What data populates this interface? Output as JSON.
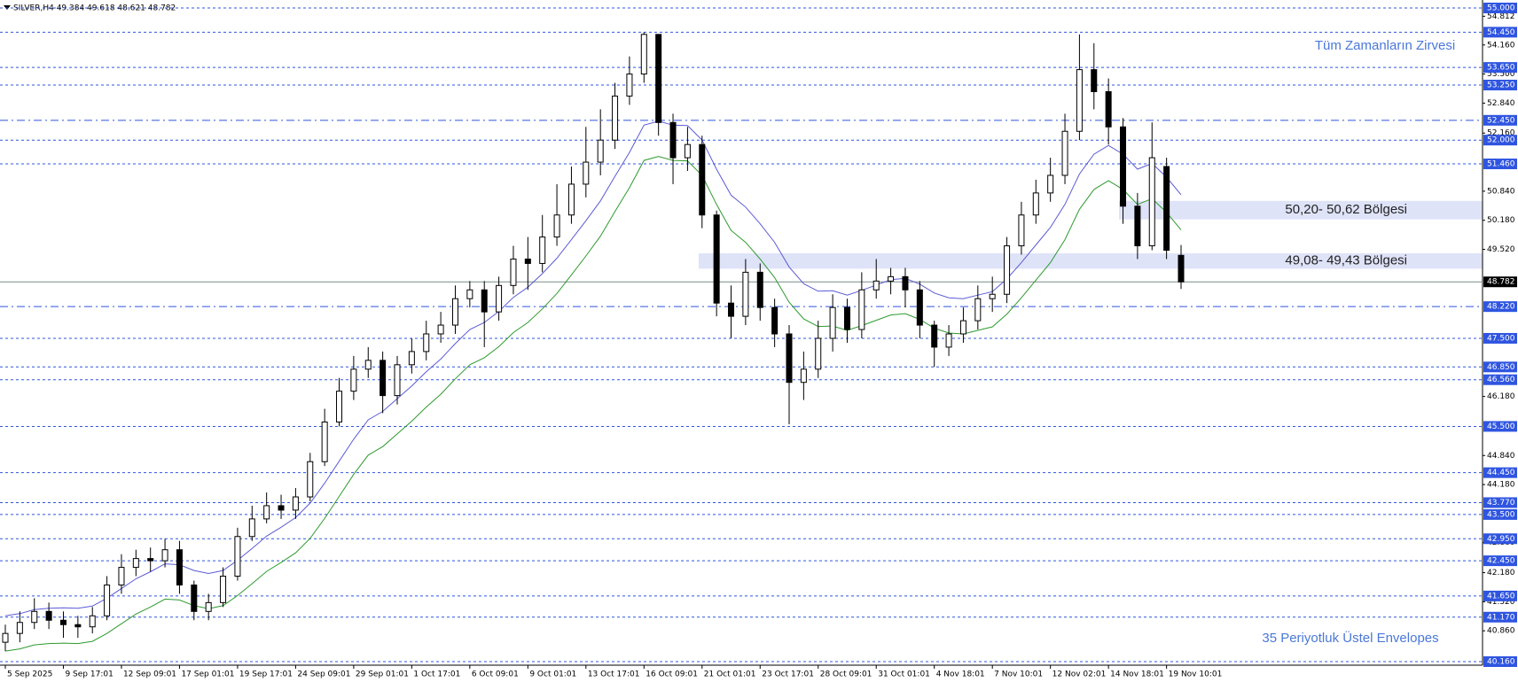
{
  "chart_data": {
    "type": "candlestick",
    "header": "SILVER,H4  49.384 49.618 48.621 48.782",
    "categories": [
      "5 Sep 2025",
      null,
      null,
      null,
      "9 Sep 17:01",
      null,
      null,
      null,
      "12 Sep 09:01",
      null,
      null,
      null,
      "17 Sep 01:01",
      null,
      null,
      null,
      "19 Sep 17:01",
      null,
      null,
      null,
      "24 Sep 09:01",
      null,
      null,
      null,
      "29 Sep 01:01",
      null,
      null,
      null,
      "1 Oct 17:01",
      null,
      null,
      null,
      "6 Oct 09:01",
      null,
      null,
      null,
      "9 Oct 01:01",
      null,
      null,
      null,
      "13 Oct 17:01",
      null,
      null,
      null,
      "16 Oct 09:01",
      null,
      null,
      null,
      "21 Oct 01:01",
      null,
      null,
      null,
      "23 Oct 17:01",
      null,
      null,
      null,
      "28 Oct 09:01",
      null,
      null,
      null,
      "31 Oct 01:01",
      null,
      null,
      null,
      "4 Nov 18:01",
      null,
      null,
      null,
      "7 Nov 10:01",
      null,
      null,
      null,
      "12 Nov 02:01",
      null,
      null,
      null,
      "14 Nov 18:01",
      null,
      null,
      null,
      "19 Nov 10:01",
      null
    ],
    "open": [
      40.6,
      40.8,
      41.05,
      41.3,
      41.1,
      41.0,
      40.95,
      41.2,
      41.9,
      42.3,
      42.5,
      42.45,
      42.7,
      41.9,
      41.3,
      41.5,
      42.1,
      43.0,
      43.4,
      43.7,
      43.6,
      43.9,
      44.7,
      45.6,
      46.3,
      46.8,
      47.0,
      46.2,
      46.9,
      47.2,
      47.6,
      47.8,
      48.4,
      48.6,
      48.1,
      48.7,
      49.3,
      49.2,
      49.8,
      50.3,
      51.0,
      51.5,
      52.0,
      53.0,
      53.5,
      54.4,
      52.4,
      51.6,
      51.9,
      50.3,
      48.3,
      48.0,
      49.0,
      48.2,
      47.6,
      46.5,
      46.8,
      47.5,
      48.2,
      47.7,
      48.6,
      48.8,
      48.9,
      48.6,
      47.8,
      47.3,
      47.6,
      47.9,
      48.4,
      48.5,
      49.6,
      50.3,
      50.8,
      51.2,
      52.2,
      53.6,
      53.1,
      52.3,
      50.5,
      49.6,
      51.4,
      49.384
    ],
    "high": [
      41.0,
      41.3,
      41.6,
      41.5,
      41.3,
      41.2,
      41.4,
      42.1,
      42.6,
      42.7,
      42.75,
      42.95,
      42.9,
      42.0,
      41.7,
      42.3,
      43.2,
      43.7,
      44.0,
      43.95,
      44.1,
      44.9,
      45.9,
      46.6,
      47.1,
      47.3,
      47.2,
      47.1,
      47.5,
      47.9,
      48.1,
      48.7,
      48.8,
      48.8,
      48.9,
      49.6,
      49.8,
      50.3,
      51.0,
      51.4,
      52.3,
      52.7,
      53.3,
      53.9,
      54.45,
      54.4,
      52.6,
      52.3,
      52.1,
      50.4,
      48.7,
      49.3,
      49.2,
      48.4,
      47.8,
      47.2,
      47.9,
      48.5,
      48.4,
      49.0,
      49.3,
      49.1,
      49.1,
      48.8,
      47.9,
      47.8,
      48.2,
      48.7,
      48.9,
      49.8,
      50.6,
      51.1,
      51.6,
      52.6,
      54.4,
      54.2,
      53.4,
      52.5,
      50.8,
      52.4,
      51.6,
      49.618
    ],
    "low": [
      40.4,
      40.6,
      40.9,
      40.9,
      40.7,
      40.7,
      40.8,
      41.1,
      41.7,
      42.1,
      42.2,
      42.3,
      41.7,
      41.1,
      41.1,
      41.4,
      42.0,
      42.9,
      43.3,
      43.4,
      43.4,
      43.8,
      44.6,
      45.5,
      46.1,
      46.6,
      45.8,
      46.0,
      46.7,
      47.0,
      47.4,
      47.6,
      48.2,
      47.3,
      47.9,
      48.5,
      48.6,
      49.0,
      49.6,
      50.1,
      50.7,
      51.2,
      51.8,
      52.8,
      53.3,
      52.1,
      51.0,
      51.3,
      50.0,
      48.0,
      47.5,
      47.8,
      47.9,
      47.3,
      45.55,
      46.1,
      46.6,
      47.2,
      47.4,
      47.5,
      48.4,
      48.5,
      48.2,
      47.5,
      46.85,
      47.1,
      47.4,
      47.7,
      48.1,
      48.3,
      49.4,
      50.1,
      50.6,
      51.0,
      52.0,
      52.7,
      51.9,
      50.1,
      49.3,
      49.5,
      49.3,
      48.621
    ],
    "close": [
      40.8,
      41.05,
      41.3,
      41.1,
      41.0,
      40.95,
      41.2,
      41.9,
      42.3,
      42.5,
      42.45,
      42.7,
      41.9,
      41.3,
      41.5,
      42.1,
      43.0,
      43.4,
      43.7,
      43.6,
      43.9,
      44.7,
      45.6,
      46.3,
      46.8,
      47.0,
      46.2,
      46.9,
      47.2,
      47.6,
      47.8,
      48.4,
      48.6,
      48.1,
      48.7,
      49.3,
      49.2,
      49.8,
      50.3,
      51.0,
      51.5,
      52.0,
      53.0,
      53.5,
      54.4,
      52.4,
      51.6,
      51.9,
      50.3,
      48.3,
      48.0,
      49.0,
      48.2,
      47.6,
      46.5,
      46.8,
      47.5,
      48.2,
      47.7,
      48.6,
      48.8,
      48.9,
      48.6,
      47.8,
      47.3,
      47.6,
      47.9,
      48.4,
      48.5,
      49.6,
      50.3,
      50.8,
      51.2,
      52.2,
      53.6,
      53.1,
      52.3,
      50.5,
      49.6,
      51.6,
      49.5,
      48.782
    ],
    "candle_colors": {
      "up": "#ffffff",
      "down": "#000000",
      "outline": "#000000"
    },
    "series": [
      {
        "color": "#5b5bd6",
        "values": [
          41.2,
          41.25,
          41.34,
          41.37,
          41.38,
          41.37,
          41.42,
          41.6,
          41.82,
          42.04,
          42.2,
          42.38,
          42.36,
          42.23,
          42.16,
          42.23,
          42.46,
          42.73,
          43.01,
          43.21,
          43.43,
          43.76,
          44.21,
          44.71,
          45.21,
          45.65,
          45.84,
          46.13,
          46.42,
          46.74,
          47.03,
          47.38,
          47.7,
          47.86,
          48.11,
          48.43,
          48.66,
          48.97,
          49.32,
          49.74,
          50.17,
          50.62,
          51.18,
          51.72,
          52.34,
          52.43,
          52.34,
          52.33,
          52.0,
          51.34,
          50.75,
          50.48,
          50.1,
          49.68,
          49.12,
          48.74,
          48.57,
          48.58,
          48.48,
          48.59,
          48.71,
          48.83,
          48.86,
          48.73,
          48.53,
          48.42,
          48.4,
          48.48,
          48.56,
          48.85,
          49.22,
          49.62,
          50.02,
          50.54,
          51.23,
          51.68,
          51.88,
          51.68,
          51.34,
          51.47,
          51.16,
          50.76
        ]
      },
      {
        "color": "#2e9a2e",
        "values": [
          40.4,
          40.45,
          40.54,
          40.57,
          40.58,
          40.57,
          40.62,
          40.8,
          41.02,
          41.24,
          41.4,
          41.58,
          41.56,
          41.43,
          41.36,
          41.43,
          41.66,
          41.93,
          42.21,
          42.41,
          42.63,
          42.96,
          43.41,
          43.91,
          44.41,
          44.85,
          45.04,
          45.33,
          45.62,
          45.94,
          46.23,
          46.58,
          46.9,
          47.06,
          47.31,
          47.63,
          47.86,
          48.17,
          48.52,
          48.94,
          49.37,
          49.82,
          50.38,
          50.92,
          51.54,
          51.63,
          51.54,
          51.53,
          51.2,
          50.54,
          49.95,
          49.68,
          49.3,
          48.88,
          48.32,
          47.94,
          47.77,
          47.78,
          47.68,
          47.79,
          47.91,
          48.03,
          48.06,
          47.93,
          47.73,
          47.62,
          47.6,
          47.68,
          47.76,
          48.05,
          48.42,
          48.82,
          49.22,
          49.74,
          50.43,
          50.88,
          51.08,
          50.88,
          50.54,
          50.67,
          50.36,
          49.96
        ]
      }
    ],
    "ylim": [
      40.16,
      55.0
    ],
    "yticks": [
      {
        "value": 54.812,
        "label": "54.812"
      },
      {
        "value": 54.16,
        "label": "54.160"
      },
      {
        "value": 53.5,
        "label": "53.500"
      },
      {
        "value": 52.84,
        "label": "52.840"
      },
      {
        "value": 52.16,
        "label": "52.160"
      },
      {
        "value": 50.84,
        "label": "50.840"
      },
      {
        "value": 50.18,
        "label": "50.180"
      },
      {
        "value": 49.52,
        "label": "49.520"
      },
      {
        "value": 46.18,
        "label": "46.180"
      },
      {
        "value": 44.84,
        "label": "44.840"
      },
      {
        "value": 44.18,
        "label": "44.180"
      },
      {
        "value": 42.86,
        "label": "42.860"
      },
      {
        "value": 42.18,
        "label": "42.180"
      },
      {
        "value": 41.52,
        "label": "41.520"
      },
      {
        "value": 40.86,
        "label": "40.860"
      }
    ],
    "level_color": "#2f55e0",
    "levels": [
      {
        "value": 55.0,
        "label": "55.000",
        "style": "dash"
      },
      {
        "value": 54.45,
        "label": "54.450",
        "style": "dash"
      },
      {
        "value": 53.65,
        "label": "53.650",
        "style": "dash"
      },
      {
        "value": 53.25,
        "label": "53.250",
        "style": "dash"
      },
      {
        "value": 52.45,
        "label": "52.450",
        "style": "dashdot"
      },
      {
        "value": 52.0,
        "label": "52.000",
        "style": "dash"
      },
      {
        "value": 51.46,
        "label": "51.460",
        "style": "dash"
      },
      {
        "value": 48.22,
        "label": "48.220",
        "style": "dashdot"
      },
      {
        "value": 47.5,
        "label": "47.500",
        "style": "dash"
      },
      {
        "value": 46.85,
        "label": "46.850",
        "style": "dash"
      },
      {
        "value": 46.56,
        "label": "46.560",
        "style": "dash"
      },
      {
        "value": 45.5,
        "label": "45.500",
        "style": "dash"
      },
      {
        "value": 44.45,
        "label": "44.450",
        "style": "dash"
      },
      {
        "value": 43.77,
        "label": "43.770",
        "style": "dash"
      },
      {
        "value": 43.5,
        "label": "43.500",
        "style": "dash"
      },
      {
        "value": 42.95,
        "label": "42.950",
        "style": "dash"
      },
      {
        "value": 42.45,
        "label": "42.450",
        "style": "dash"
      },
      {
        "value": 41.65,
        "label": "41.650",
        "style": "dash"
      },
      {
        "value": 41.17,
        "label": "41.170",
        "style": "dash"
      },
      {
        "value": 40.16,
        "label": "40.160",
        "style": "dash"
      }
    ],
    "last_price": {
      "value": 48.782,
      "label": "48.782"
    },
    "zones": [
      {
        "label": "50,20- 50,62 Bölgesi",
        "low": 50.2,
        "high": 50.62
      },
      {
        "label": "49,08- 49,43 Bölgesi",
        "low": 49.08,
        "high": 49.43
      }
    ],
    "annotations": [
      "Tüm Zamanların Zirvesi",
      "35 Periyotluk Üstel Envelopes"
    ]
  }
}
